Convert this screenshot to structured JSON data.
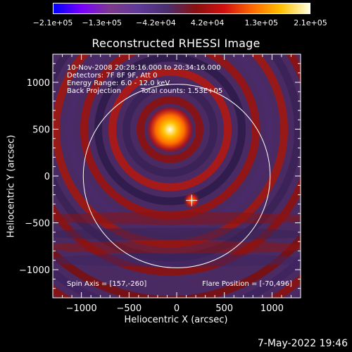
{
  "colorbar": {
    "ticks": [
      "-2.1e+05",
      "-1.3e+05",
      "-4.2e+04",
      "4.2e+04",
      "1.3e+05",
      "2.1e+05"
    ],
    "tick_values": [
      -210000,
      -130000,
      -42000,
      42000,
      130000,
      210000
    ],
    "range": [
      -210000,
      210000
    ],
    "colors": [
      "#0000ff",
      "#7a00ff",
      "#7d3a8c",
      "#5e3a9a",
      "#4a2e6e",
      "#8a1010",
      "#d21010",
      "#ff6a00",
      "#ffc000",
      "#ffffe0"
    ]
  },
  "annotations": {
    "line1": "10-Nov-2008 20:28:16.000 to 20:34:16.000",
    "line2": "Detectors: 7F 8F 9F, Att 0",
    "line3": "Energy Range: 6.0 - 12.0 keV",
    "line4_a": "Back Projection",
    "line4_b": "Total counts: 1.53E+05",
    "spin_axis": "Spin Axis = [157,-260]",
    "flare_position": "Flare Position = [-70,496]"
  },
  "footer": {
    "date": "7-May-2022 19:46"
  },
  "chart_data": {
    "type": "heatmap",
    "title": "Reconstructed RHESSI Image",
    "xlabel": "Heliocentric X (arcsec)",
    "ylabel": "Heliocentric Y (arcsec)",
    "xlim": [
      -1300,
      1300
    ],
    "ylim": [
      -1300,
      1300
    ],
    "xticks": [
      -1000,
      -500,
      0,
      500,
      1000
    ],
    "yticks": [
      -1000,
      -500,
      0,
      500,
      1000
    ],
    "x_tick_labels": [
      "−1000",
      "−500",
      "0",
      "500",
      "1000"
    ],
    "y_tick_labels": [
      "−1000",
      "−500",
      "0",
      "500",
      "1000"
    ],
    "solar_limb": {
      "center": [
        0,
        0
      ],
      "radius": 980
    },
    "sources": [
      {
        "name": "flare-source",
        "center": [
          -70,
          496
        ],
        "intensity": 210000
      },
      {
        "name": "secondary-source",
        "center": [
          157,
          -260
        ],
        "intensity": 110000
      }
    ],
    "spin_axis_marker": [
      157,
      -260
    ],
    "grid": false
  }
}
